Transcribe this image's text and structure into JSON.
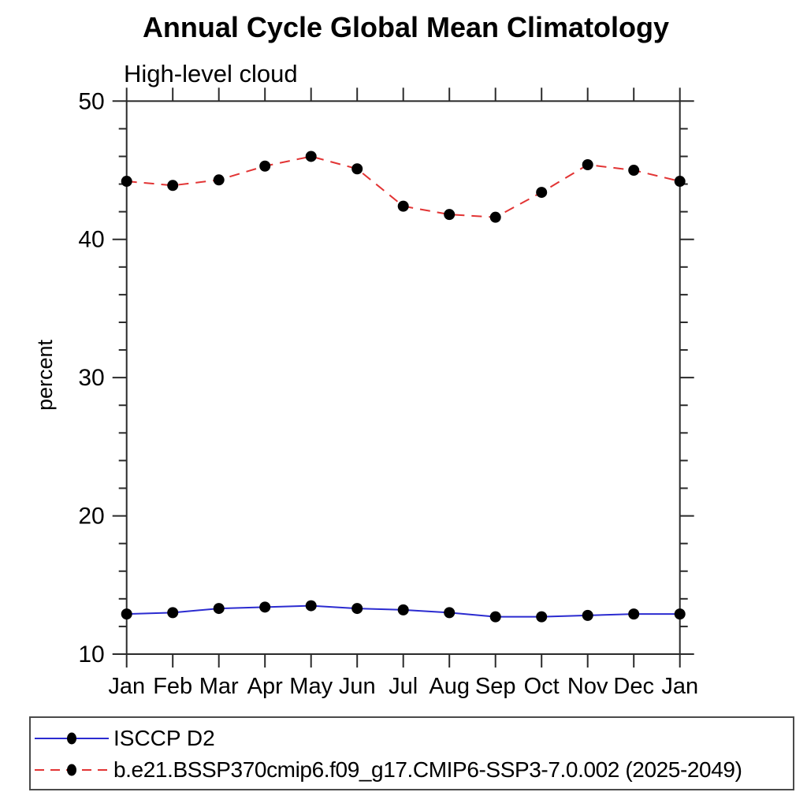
{
  "chart_data": {
    "type": "line",
    "title": "Annual Cycle Global Mean Climatology",
    "subtitle": "High-level cloud",
    "xlabel": "",
    "ylabel": "percent",
    "categories": [
      "Jan",
      "Feb",
      "Mar",
      "Apr",
      "May",
      "Jun",
      "Jul",
      "Aug",
      "Sep",
      "Oct",
      "Nov",
      "Dec",
      "Jan"
    ],
    "ylim": [
      10,
      50
    ],
    "y_major_step": 10,
    "y_minor_step": 2,
    "grid": false,
    "legend_position": "bottom",
    "series": [
      {
        "name": "ISCCP D2",
        "line_style": "solid",
        "line_color": "#2b2bd0",
        "marker": "black-dot",
        "marker_color": "#000000",
        "values": [
          12.9,
          13.0,
          13.3,
          13.4,
          13.5,
          13.3,
          13.2,
          13.0,
          12.7,
          12.7,
          12.8,
          12.9,
          12.9
        ]
      },
      {
        "name": "b.e21.BSSP370cmip6.f09_g17.CMIP6-SSP3-7.0.002 (2025-2049)",
        "line_style": "dashed",
        "line_color": "#e23434",
        "marker": "black-dot",
        "marker_color": "#000000",
        "values": [
          44.2,
          43.9,
          44.3,
          45.3,
          46.0,
          45.1,
          42.4,
          41.8,
          41.6,
          43.4,
          45.4,
          45.0,
          44.2
        ]
      }
    ]
  }
}
